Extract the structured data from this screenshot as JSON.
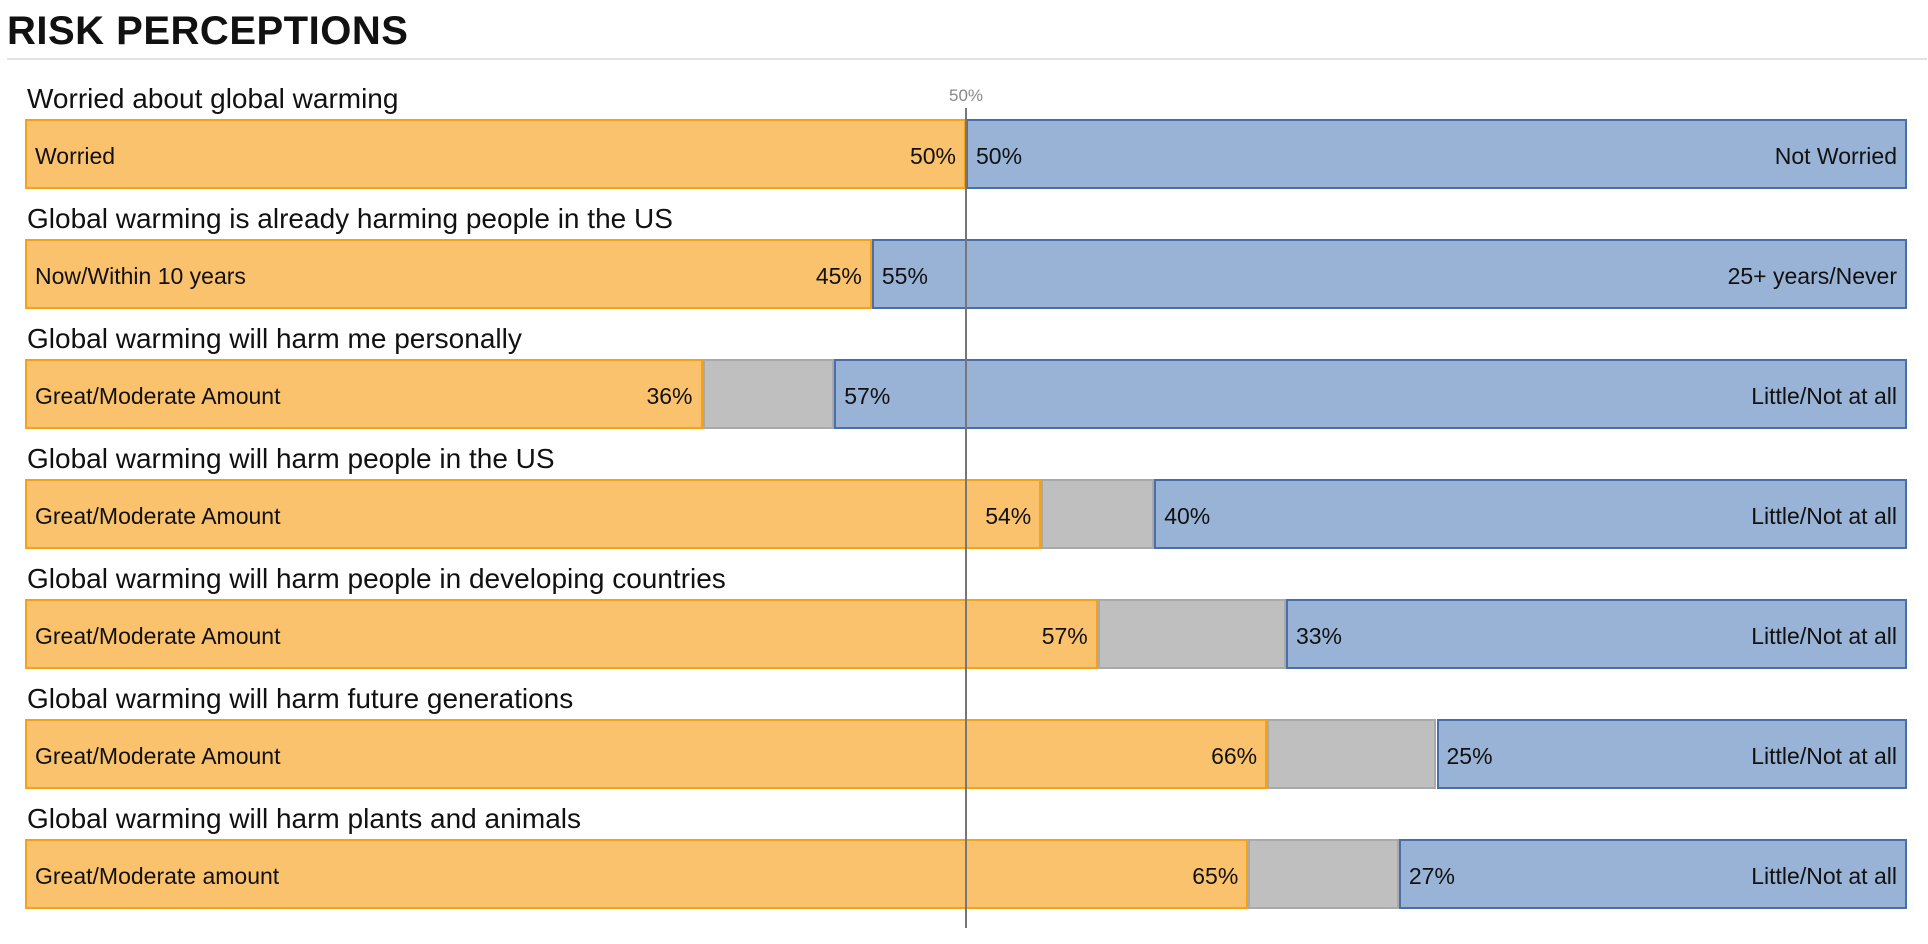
{
  "page": {
    "title": "RISK PERCEPTIONS"
  },
  "colors": {
    "agree_fill": "#fbc26d",
    "agree_border": "#f5a21b",
    "neutral_fill": "#bfbfbf",
    "disagree_fill": "#98b3d5",
    "disagree_border": "#4a6ea9",
    "reference_line": "#777777"
  },
  "chart_data": {
    "type": "bar",
    "orientation": "horizontal",
    "stacked": true,
    "title": "RISK PERCEPTIONS",
    "reference_line": {
      "value": 50,
      "label": "50%"
    },
    "xlim": [
      0,
      100
    ],
    "rows": [
      {
        "question": "Worried about global warming",
        "left_label": "Worried",
        "right_label": "Not Worried",
        "agree": 50,
        "disagree": 50,
        "agree_text": "50%",
        "disagree_text": "50%"
      },
      {
        "question": "Global warming is already harming people in the US",
        "left_label": "Now/Within 10 years",
        "right_label": "25+ years/Never",
        "agree": 45,
        "disagree": 55,
        "agree_text": "45%",
        "disagree_text": "55%"
      },
      {
        "question": "Global warming will harm me personally",
        "left_label": "Great/Moderate Amount",
        "right_label": "Little/Not at all",
        "agree": 36,
        "disagree": 57,
        "agree_text": "36%",
        "disagree_text": "57%"
      },
      {
        "question": "Global warming will harm people in the US",
        "left_label": "Great/Moderate Amount",
        "right_label": "Little/Not at all",
        "agree": 54,
        "disagree": 40,
        "agree_text": "54%",
        "disagree_text": "40%"
      },
      {
        "question": "Global warming will harm people in developing countries",
        "left_label": "Great/Moderate Amount",
        "right_label": "Little/Not at all",
        "agree": 57,
        "disagree": 33,
        "agree_text": "57%",
        "disagree_text": "33%"
      },
      {
        "question": "Global warming will harm future generations",
        "left_label": "Great/Moderate Amount",
        "right_label": "Little/Not at all",
        "agree": 66,
        "disagree": 25,
        "agree_text": "66%",
        "disagree_text": "25%"
      },
      {
        "question": "Global warming will harm plants and animals",
        "left_label": "Great/Moderate amount",
        "right_label": "Little/Not at all",
        "agree": 65,
        "disagree": 27,
        "agree_text": "65%",
        "disagree_text": "27%"
      }
    ]
  }
}
